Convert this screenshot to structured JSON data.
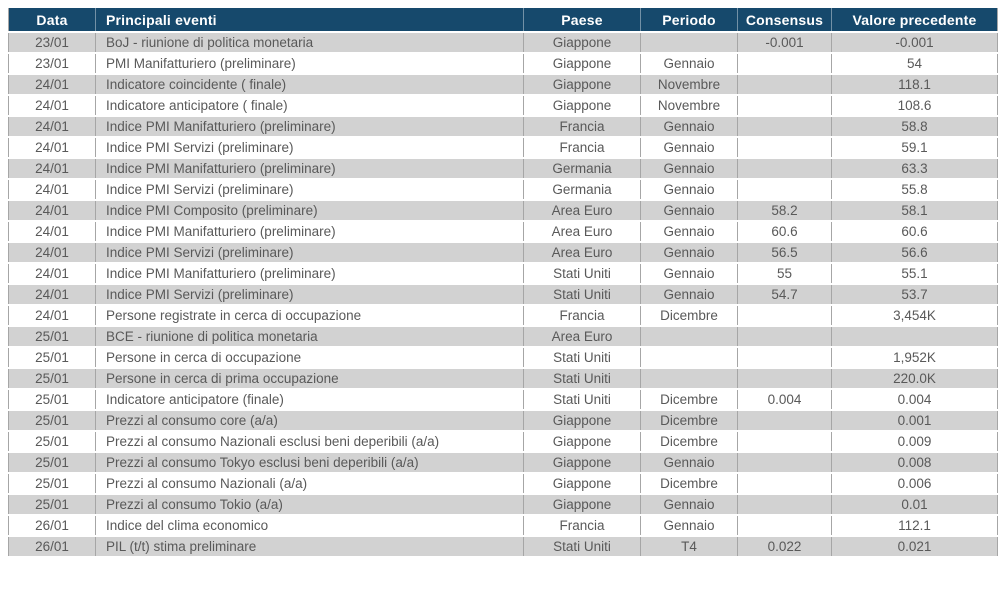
{
  "table": {
    "colors": {
      "header_bg": "#16496c",
      "header_text": "#ffffff",
      "row_alt_bg": "#d2d2d2",
      "row_bg": "#ffffff",
      "cell_text": "#595959",
      "grid": "#a6a6a6"
    },
    "columns": [
      {
        "key": "date",
        "label": "Data"
      },
      {
        "key": "event",
        "label": "Principali eventi"
      },
      {
        "key": "country",
        "label": "Paese"
      },
      {
        "key": "period",
        "label": "Periodo"
      },
      {
        "key": "consensus",
        "label": "Consensus"
      },
      {
        "key": "previous",
        "label": "Valore precedente"
      }
    ],
    "rows": [
      {
        "date": "23/01",
        "event": "BoJ - riunione di politica monetaria",
        "country": "Giappone",
        "period": "",
        "consensus": "-0.001",
        "previous": "-0.001"
      },
      {
        "date": "23/01",
        "event": "PMI Manifatturiero (preliminare)",
        "country": "Giappone",
        "period": "Gennaio",
        "consensus": "",
        "previous": "54"
      },
      {
        "date": "24/01",
        "event": "Indicatore coincidente ( finale)",
        "country": "Giappone",
        "period": "Novembre",
        "consensus": "",
        "previous": "118.1"
      },
      {
        "date": "24/01",
        "event": "Indicatore anticipatore ( finale)",
        "country": "Giappone",
        "period": "Novembre",
        "consensus": "",
        "previous": "108.6"
      },
      {
        "date": "24/01",
        "event": "Indice PMI Manifatturiero (preliminare)",
        "country": "Francia",
        "period": "Gennaio",
        "consensus": "",
        "previous": "58.8"
      },
      {
        "date": "24/01",
        "event": "Indice PMI Servizi (preliminare)",
        "country": "Francia",
        "period": "Gennaio",
        "consensus": "",
        "previous": "59.1"
      },
      {
        "date": "24/01",
        "event": "Indice PMI Manifatturiero (preliminare)",
        "country": "Germania",
        "period": "Gennaio",
        "consensus": "",
        "previous": "63.3"
      },
      {
        "date": "24/01",
        "event": "Indice PMI Servizi (preliminare)",
        "country": "Germania",
        "period": "Gennaio",
        "consensus": "",
        "previous": "55.8"
      },
      {
        "date": "24/01",
        "event": "Indice PMI Composito (preliminare)",
        "country": "Area Euro",
        "period": "Gennaio",
        "consensus": "58.2",
        "previous": "58.1"
      },
      {
        "date": "24/01",
        "event": "Indice PMI Manifatturiero (preliminare)",
        "country": "Area Euro",
        "period": "Gennaio",
        "consensus": "60.6",
        "previous": "60.6"
      },
      {
        "date": "24/01",
        "event": "Indice PMI Servizi (preliminare)",
        "country": "Area Euro",
        "period": "Gennaio",
        "consensus": "56.5",
        "previous": "56.6"
      },
      {
        "date": "24/01",
        "event": "Indice PMI Manifatturiero (preliminare)",
        "country": "Stati Uniti",
        "period": "Gennaio",
        "consensus": "55",
        "previous": "55.1"
      },
      {
        "date": "24/01",
        "event": "Indice PMI Servizi (preliminare)",
        "country": "Stati Uniti",
        "period": "Gennaio",
        "consensus": "54.7",
        "previous": "53.7"
      },
      {
        "date": "24/01",
        "event": "Persone registrate in cerca di occupazione",
        "country": "Francia",
        "period": "Dicembre",
        "consensus": "",
        "previous": "3,454K"
      },
      {
        "date": "25/01",
        "event": "BCE - riunione di politica monetaria",
        "country": "Area Euro",
        "period": "",
        "consensus": "",
        "previous": ""
      },
      {
        "date": "25/01",
        "event": "Persone in cerca di occupazione",
        "country": "Stati Uniti",
        "period": "",
        "consensus": "",
        "previous": "1,952K"
      },
      {
        "date": "25/01",
        "event": "Persone in cerca di prima occupazione",
        "country": "Stati Uniti",
        "period": "",
        "consensus": "",
        "previous": "220.0K"
      },
      {
        "date": "25/01",
        "event": "Indicatore anticipatore (finale)",
        "country": "Stati Uniti",
        "period": "Dicembre",
        "consensus": "0.004",
        "previous": "0.004"
      },
      {
        "date": "25/01",
        "event": "Prezzi al consumo core (a/a)",
        "country": "Giappone",
        "period": "Dicembre",
        "consensus": "",
        "previous": "0.001"
      },
      {
        "date": "25/01",
        "event": "Prezzi al consumo Nazionali esclusi beni deperibili (a/a)",
        "country": "Giappone",
        "period": "Dicembre",
        "consensus": "",
        "previous": "0.009"
      },
      {
        "date": "25/01",
        "event": "Prezzi al consumo Tokyo esclusi beni deperibili (a/a)",
        "country": "Giappone",
        "period": "Gennaio",
        "consensus": "",
        "previous": "0.008"
      },
      {
        "date": "25/01",
        "event": "Prezzi al consumo Nazionali (a/a)",
        "country": "Giappone",
        "period": "Dicembre",
        "consensus": "",
        "previous": "0.006"
      },
      {
        "date": "25/01",
        "event": "Prezzi al consumo Tokio (a/a)",
        "country": "Giappone",
        "period": "Gennaio",
        "consensus": "",
        "previous": "0.01"
      },
      {
        "date": "26/01",
        "event": "Indice del clima economico",
        "country": "Francia",
        "period": "Gennaio",
        "consensus": "",
        "previous": "112.1"
      },
      {
        "date": "26/01",
        "event": "PIL (t/t) stima preliminare",
        "country": "Stati Uniti",
        "period": "T4",
        "consensus": "0.022",
        "previous": "0.021"
      }
    ]
  }
}
